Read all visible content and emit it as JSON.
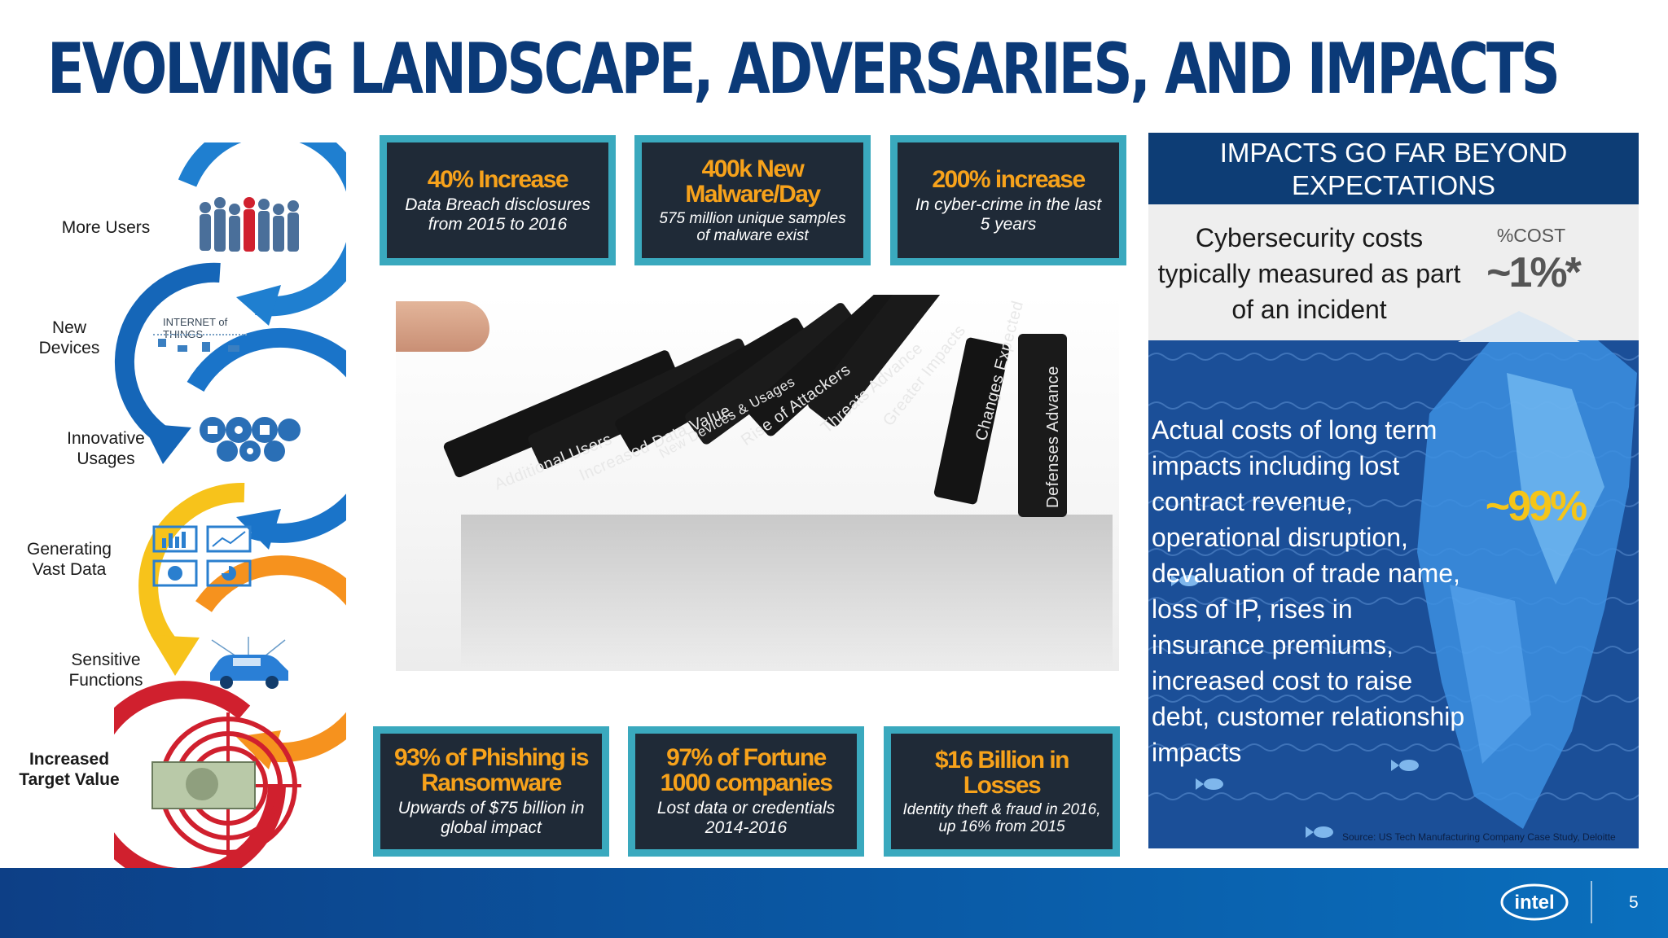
{
  "slide": {
    "title": "EVOLVING LANDSCAPE, ADVERSARIES, AND IMPACTS",
    "page_number": "5",
    "logo_text": "intel"
  },
  "flow": {
    "items": [
      {
        "label": "More Users",
        "icon": "crowd-icon",
        "arrow_color": "#1f7fd0"
      },
      {
        "label": "New Devices",
        "icon": "internet-of-things-icon",
        "icon_text": "INTERNET of THINGS",
        "arrow_color": "#1566b8"
      },
      {
        "label": "Innovative Usages",
        "icon": "usage-circles-icon",
        "arrow_color": "#1a74c9"
      },
      {
        "label": "Generating Vast Data",
        "icon": "data-monitors-icon",
        "arrow_color": "#f7c31b"
      },
      {
        "label": "Sensitive Functions",
        "icon": "connected-car-icon",
        "arrow_color": "#f6921e"
      },
      {
        "label": "Increased Target Value",
        "icon": "dollar-target-icon",
        "arrow_color": "#d0202e"
      }
    ]
  },
  "cards": {
    "top": [
      {
        "headline": "40% Increase",
        "sub": "Data Breach disclosures from 2015 to 2016"
      },
      {
        "headline": "400k New Malware/Day",
        "sub": "575 million unique samples of malware exist"
      },
      {
        "headline": "200% increase",
        "sub": "In cyber-crime in the last 5 years"
      }
    ],
    "bottom": [
      {
        "headline": "93% of Phishing is Ransomware",
        "sub": "Upwards of $75 billion in global impact"
      },
      {
        "headline": "97% of Fortune 1000 companies",
        "sub": "Lost data or credentials 2014-2016"
      },
      {
        "headline": "$16 Billion in Losses",
        "sub": "Identity theft & fraud in 2016, up 16% from 2015"
      }
    ]
  },
  "dominoes": {
    "labels": [
      "Additional Users",
      "Increased Data Value",
      "New Devices & Usages",
      "Rise of Attackers",
      "Threats Advance",
      "Greater Impacts",
      "Changes Expected",
      "Defenses Advance"
    ]
  },
  "impacts": {
    "header": "IMPACTS GO FAR BEYOND EXPECTATIONS",
    "cost_text": "Cybersecurity costs typically measured as part of an incident",
    "cost_label": "%COST",
    "cost_value": "~1%*",
    "long_term_text": "Actual costs of long term impacts including lost contract revenue, operational disruption, devaluation of trade name, loss of IP, rises in insurance premiums, increased cost to raise debt, customer relationship impacts",
    "long_term_value": "~99%",
    "source": "Source: US Tech Manufacturing Company Case Study, Deloitte"
  },
  "colors": {
    "title": "#0b3a78",
    "card_border": "#3aa9be",
    "card_bg": "#1f2a37",
    "card_headline": "#f7a21b",
    "impact_header_bg": "#0d3d75",
    "sea": "#1b4f98",
    "highlight_value": "#f5c518"
  }
}
